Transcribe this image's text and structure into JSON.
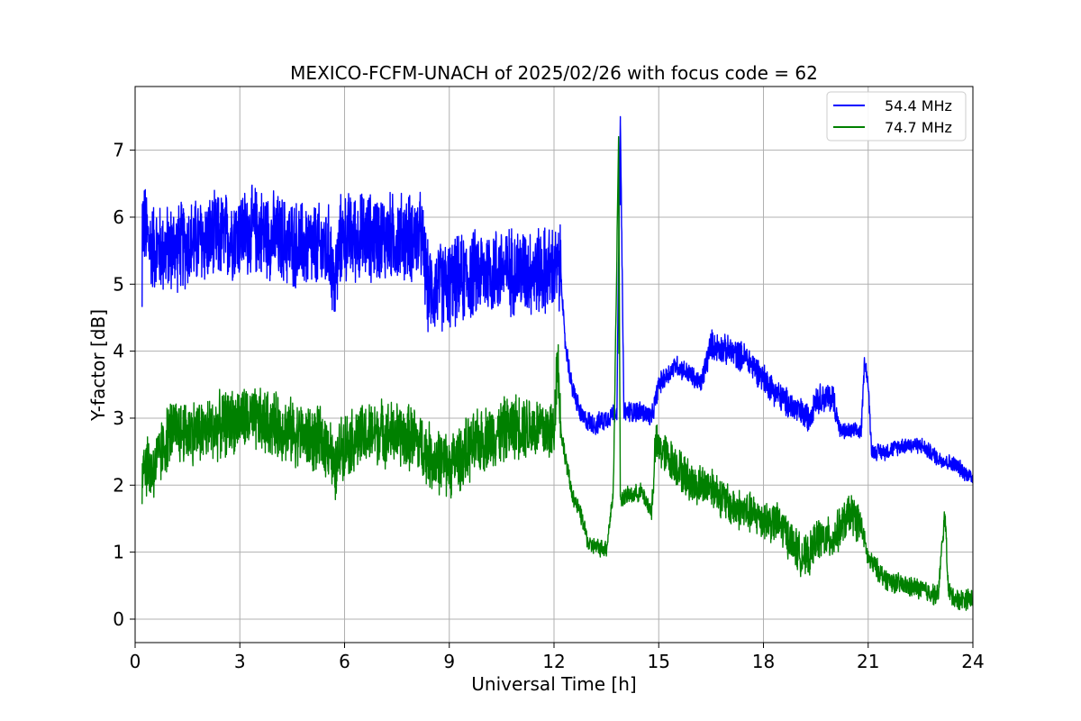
{
  "chart_data": {
    "type": "line",
    "title": "MEXICO-FCFM-UNACH of 2025/02/26 with focus code = 62",
    "xlabel": "Universal Time [h]",
    "ylabel": "Y-factor [dB]",
    "xlim": [
      0,
      24
    ],
    "ylim": [
      -0.35,
      7.95
    ],
    "xticks": [
      0,
      3,
      6,
      9,
      12,
      15,
      18,
      21,
      24
    ],
    "yticks": [
      0,
      1,
      2,
      3,
      4,
      5,
      6,
      7
    ],
    "grid": true,
    "legend_position": "top-right",
    "series": [
      {
        "name": "54.4 MHz",
        "color": "#0000ff",
        "points": [
          [
            0.2,
            4.5
          ],
          [
            0.2,
            6.0
          ],
          [
            0.4,
            5.6
          ],
          [
            0.8,
            5.5
          ],
          [
            1.5,
            5.6
          ],
          [
            2.5,
            5.7
          ],
          [
            3.5,
            5.8
          ],
          [
            4.5,
            5.6
          ],
          [
            5.6,
            5.5
          ],
          [
            5.7,
            4.9
          ],
          [
            5.9,
            5.7
          ],
          [
            7.0,
            5.7
          ],
          [
            8.2,
            5.7
          ],
          [
            8.4,
            4.9
          ],
          [
            9.0,
            5.0
          ],
          [
            10.0,
            5.2
          ],
          [
            11.0,
            5.2
          ],
          [
            12.0,
            5.2
          ],
          [
            12.2,
            5.2
          ],
          [
            12.3,
            4.2
          ],
          [
            12.5,
            3.5
          ],
          [
            12.8,
            3.0
          ],
          [
            13.2,
            2.9
          ],
          [
            13.5,
            3.0
          ],
          [
            13.8,
            3.1
          ],
          [
            13.9,
            7.5
          ],
          [
            14.0,
            3.1
          ],
          [
            14.5,
            3.1
          ],
          [
            14.8,
            3.0
          ],
          [
            15.0,
            3.5
          ],
          [
            15.5,
            3.8
          ],
          [
            16.0,
            3.6
          ],
          [
            16.2,
            3.5
          ],
          [
            16.5,
            4.1
          ],
          [
            17.0,
            4.0
          ],
          [
            17.5,
            3.9
          ],
          [
            18.0,
            3.6
          ],
          [
            18.5,
            3.3
          ],
          [
            19.0,
            3.1
          ],
          [
            19.3,
            3.0
          ],
          [
            19.5,
            3.3
          ],
          [
            20.0,
            3.3
          ],
          [
            20.2,
            2.8
          ],
          [
            20.8,
            2.8
          ],
          [
            20.9,
            3.9
          ],
          [
            21.0,
            3.5
          ],
          [
            21.1,
            2.5
          ],
          [
            21.5,
            2.5
          ],
          [
            22.0,
            2.6
          ],
          [
            22.5,
            2.6
          ],
          [
            23.0,
            2.4
          ],
          [
            23.5,
            2.3
          ],
          [
            24.0,
            2.1
          ]
        ]
      },
      {
        "name": "74.7 MHz",
        "color": "#008000",
        "points": [
          [
            0.2,
            1.8
          ],
          [
            0.2,
            2.4
          ],
          [
            0.5,
            2.2
          ],
          [
            1.0,
            2.8
          ],
          [
            2.0,
            2.8
          ],
          [
            3.0,
            3.0
          ],
          [
            4.0,
            2.9
          ],
          [
            5.0,
            2.7
          ],
          [
            5.6,
            2.6
          ],
          [
            5.7,
            2.1
          ],
          [
            5.9,
            2.6
          ],
          [
            7.0,
            2.8
          ],
          [
            8.0,
            2.7
          ],
          [
            8.5,
            2.4
          ],
          [
            9.0,
            2.3
          ],
          [
            10.0,
            2.7
          ],
          [
            11.0,
            2.9
          ],
          [
            12.0,
            2.8
          ],
          [
            12.1,
            4.0
          ],
          [
            12.2,
            2.8
          ],
          [
            12.5,
            1.9
          ],
          [
            12.8,
            1.5
          ],
          [
            13.0,
            1.1
          ],
          [
            13.5,
            1.05
          ],
          [
            13.7,
            1.9
          ],
          [
            13.85,
            7.2
          ],
          [
            13.9,
            1.8
          ],
          [
            14.5,
            1.9
          ],
          [
            14.8,
            1.6
          ],
          [
            14.9,
            2.6
          ],
          [
            15.5,
            2.3
          ],
          [
            16.0,
            2.0
          ],
          [
            16.5,
            2.0
          ],
          [
            17.0,
            1.7
          ],
          [
            17.5,
            1.6
          ],
          [
            18.0,
            1.5
          ],
          [
            18.5,
            1.4
          ],
          [
            19.0,
            1.0
          ],
          [
            19.3,
            0.9
          ],
          [
            19.5,
            1.2
          ],
          [
            20.0,
            1.2
          ],
          [
            20.5,
            1.6
          ],
          [
            20.8,
            1.4
          ],
          [
            21.0,
            0.9
          ],
          [
            21.5,
            0.6
          ],
          [
            22.0,
            0.5
          ],
          [
            22.5,
            0.45
          ],
          [
            23.0,
            0.35
          ],
          [
            23.2,
            1.6
          ],
          [
            23.3,
            0.4
          ],
          [
            23.5,
            0.3
          ],
          [
            24.0,
            0.3
          ]
        ]
      }
    ]
  }
}
